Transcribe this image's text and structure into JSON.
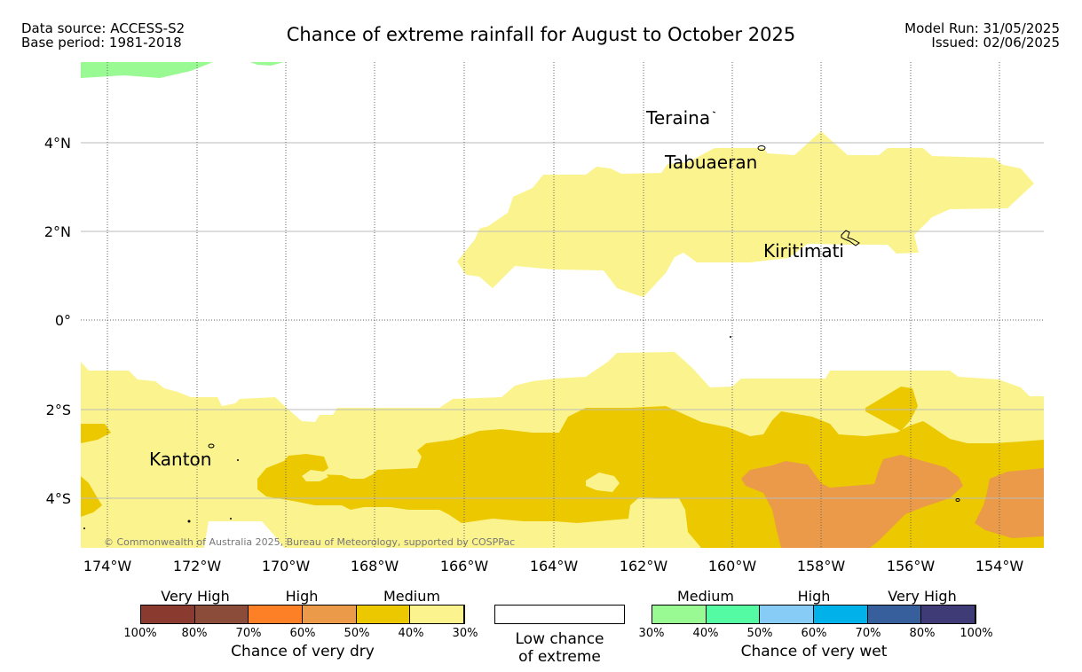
{
  "header": {
    "data_source": "Data source: ACCESS-S2",
    "base_period": "Base period: 1981-2018",
    "title": "Chance of extreme rainfall for August to October 2025",
    "model_run": "Model Run: 31/05/2025",
    "issued": "Issued: 02/06/2025"
  },
  "map": {
    "lat_labels": [
      "4°N",
      "2°N",
      "0°",
      "2°S",
      "4°S"
    ],
    "lon_labels": [
      "174°W",
      "172°W",
      "170°W",
      "168°W",
      "166°W",
      "164°W",
      "162°W",
      "160°W",
      "158°W",
      "156°W",
      "154°W"
    ],
    "places": [
      "Teraina",
      "Tabuaeran",
      "Kiritimati",
      "Kanton"
    ],
    "copyright": "© Commonwealth of Australia 2025, Bureau of Meteorology, supported by COSPPac",
    "colors": {
      "dry_medium_light": "#fbf48e",
      "dry_medium_dark": "#ecc800",
      "dry_high_light": "#ea9a48",
      "wet_medium_light": "#99f993"
    }
  },
  "legend": {
    "dry": {
      "groups": [
        "Very High",
        "High",
        "Medium"
      ],
      "ticks": [
        "100%",
        "80%",
        "70%",
        "60%",
        "50%",
        "40%",
        "30%"
      ],
      "colors": [
        "#8b3a30",
        "#8c4c3a",
        "#fd8026",
        "#ea9a48",
        "#ecc800",
        "#fbf48e"
      ],
      "caption": "Chance of very dry"
    },
    "low": {
      "caption_line1": "Low chance",
      "caption_line2": "of extreme"
    },
    "wet": {
      "groups": [
        "Medium",
        "High",
        "Very High"
      ],
      "ticks": [
        "30%",
        "40%",
        "50%",
        "60%",
        "70%",
        "80%",
        "100%"
      ],
      "colors": [
        "#99f993",
        "#55fba3",
        "#87cbf7",
        "#00b1ea",
        "#365f9b",
        "#3e3b76"
      ],
      "caption": "Chance of very wet"
    }
  }
}
